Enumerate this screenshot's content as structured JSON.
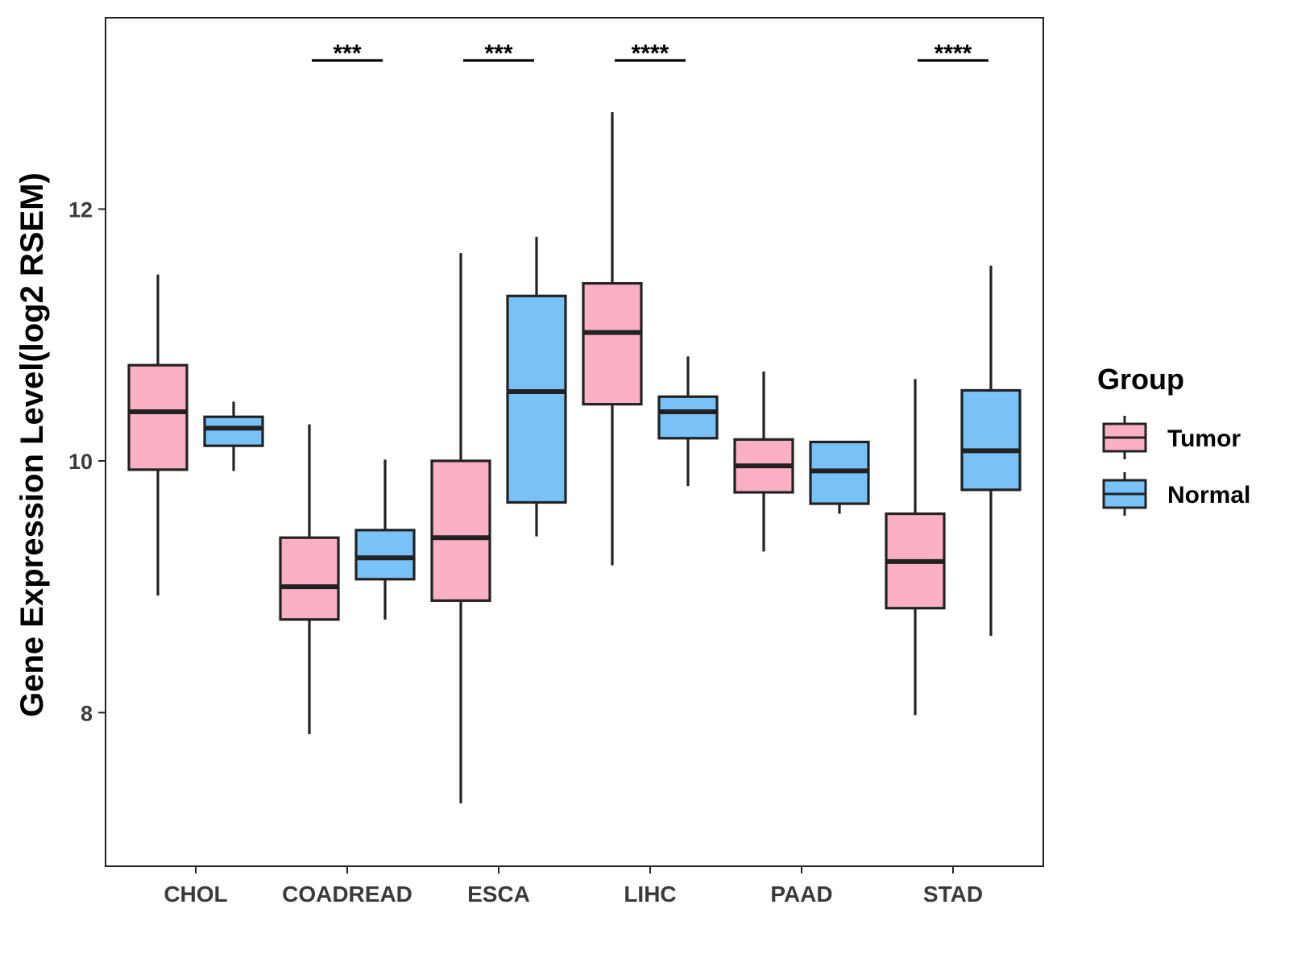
{
  "chart_data": {
    "type": "box",
    "ylabel": "Gene Expression Level(log2 RSEM)",
    "xlabel": "",
    "title": "",
    "ylim": [
      6.78,
      13.52
    ],
    "yticks": [
      8,
      10,
      12
    ],
    "grid": false,
    "categories": [
      "CHOL",
      "COADREAD",
      "ESCA",
      "LIHC",
      "PAAD",
      "STAD"
    ],
    "legend": {
      "title": "Group",
      "position": "right",
      "entries": [
        {
          "label": "Tumor",
          "color": "#fbb1c3"
        },
        {
          "label": "Normal",
          "color": "#79c2f7"
        }
      ]
    },
    "series": [
      {
        "name": "Tumor",
        "color": "#fbb1c3",
        "boxes": [
          {
            "min": 8.93,
            "q1": 9.93,
            "median": 10.39,
            "q3": 10.76,
            "max": 11.48
          },
          {
            "min": 7.83,
            "q1": 8.74,
            "median": 9.0,
            "q3": 9.39,
            "max": 10.29
          },
          {
            "min": 7.28,
            "q1": 8.89,
            "median": 9.39,
            "q3": 10.0,
            "max": 11.65
          },
          {
            "min": 9.17,
            "q1": 10.45,
            "median": 11.02,
            "q3": 11.41,
            "max": 12.77
          },
          {
            "min": 9.28,
            "q1": 9.75,
            "median": 9.96,
            "q3": 10.17,
            "max": 10.71
          },
          {
            "min": 7.98,
            "q1": 8.83,
            "median": 9.2,
            "q3": 9.58,
            "max": 10.65
          }
        ]
      },
      {
        "name": "Normal",
        "color": "#79c2f7",
        "boxes": [
          {
            "min": 9.92,
            "q1": 10.12,
            "median": 10.26,
            "q3": 10.35,
            "max": 10.47
          },
          {
            "min": 8.74,
            "q1": 9.06,
            "median": 9.23,
            "q3": 9.45,
            "max": 10.01
          },
          {
            "min": 9.4,
            "q1": 9.67,
            "median": 10.55,
            "q3": 11.31,
            "max": 11.78
          },
          {
            "min": 9.8,
            "q1": 10.18,
            "median": 10.39,
            "q3": 10.51,
            "max": 10.83
          },
          {
            "min": 9.58,
            "q1": 9.66,
            "median": 9.92,
            "q3": 10.15,
            "max": 10.15
          },
          {
            "min": 8.61,
            "q1": 9.77,
            "median": 10.08,
            "q3": 10.56,
            "max": 11.55
          }
        ]
      }
    ],
    "annotations": [
      {
        "category": "CHOL",
        "label": ""
      },
      {
        "category": "COADREAD",
        "label": "***"
      },
      {
        "category": "ESCA",
        "label": "***"
      },
      {
        "category": "LIHC",
        "label": "****"
      },
      {
        "category": "PAAD",
        "label": ""
      },
      {
        "category": "STAD",
        "label": "****"
      }
    ]
  }
}
